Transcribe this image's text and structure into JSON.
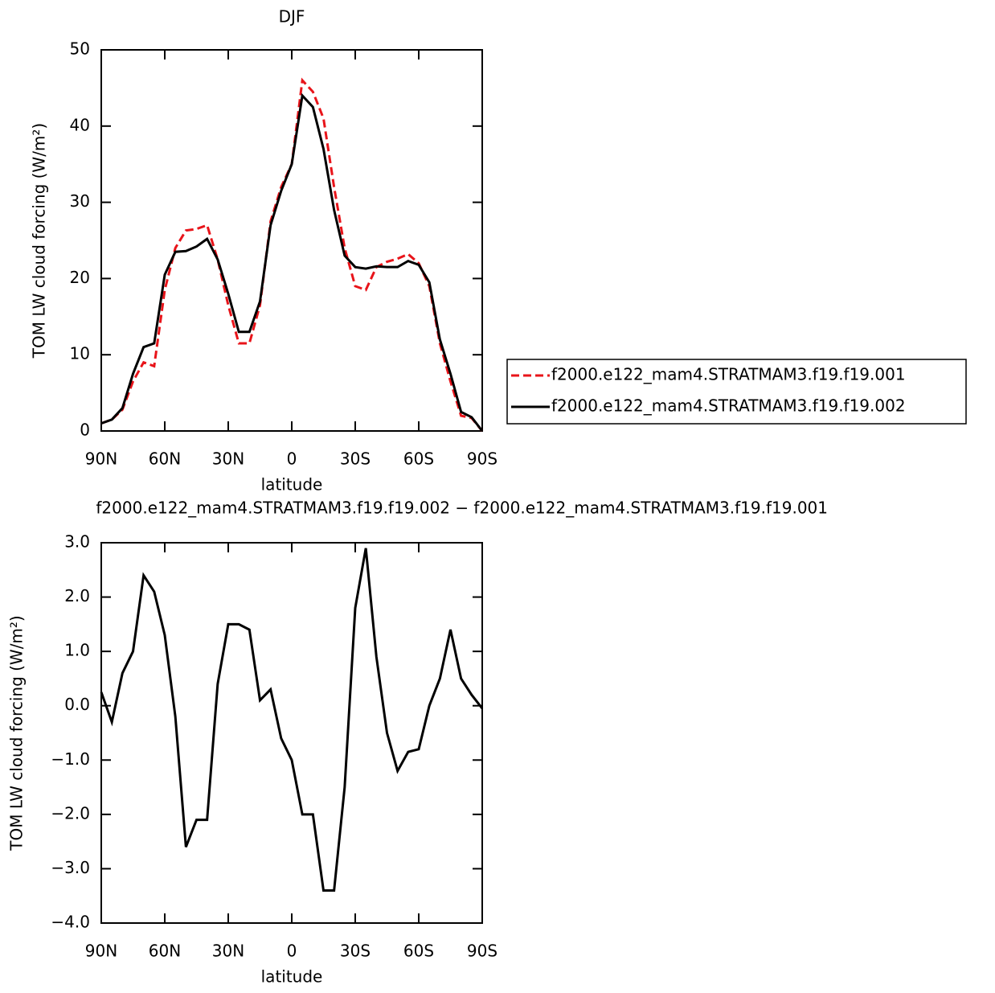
{
  "chart_data": [
    {
      "type": "line",
      "title": "DJF",
      "xlabel": "latitude",
      "ylabel": "TOM LW cloud forcing (W/m²)",
      "x": [
        90,
        85,
        80,
        75,
        70,
        65,
        60,
        55,
        50,
        45,
        40,
        35,
        30,
        25,
        20,
        15,
        10,
        5,
        0,
        -5,
        -10,
        -15,
        -20,
        -25,
        -30,
        -35,
        -40,
        -45,
        -50,
        -55,
        -60,
        -65,
        -70,
        -75,
        -80,
        -85,
        -90
      ],
      "xlim": [
        90,
        -90
      ],
      "xticks": [
        {
          "value": 90,
          "label": "90N"
        },
        {
          "value": 60,
          "label": "60N"
        },
        {
          "value": 30,
          "label": "30N"
        },
        0,
        {
          "value": -30,
          "label": "30S"
        },
        {
          "value": -60,
          "label": "60S"
        },
        {
          "value": -90,
          "label": "90S"
        }
      ],
      "ylim": [
        0,
        50
      ],
      "yticks": [
        0,
        10,
        20,
        30,
        40,
        50
      ],
      "series": [
        {
          "name": "f2000.e122_mam4.STRATMAM3.f19.f19.001",
          "color": "#e8141a",
          "dash": true,
          "values": [
            1.0,
            1.5,
            2.8,
            6.5,
            9.0,
            8.5,
            18.5,
            24.0,
            26.3,
            26.5,
            27.0,
            22.5,
            16.5,
            11.5,
            11.5,
            16.5,
            27.5,
            32.0,
            35.0,
            46.0,
            44.5,
            41.0,
            32.0,
            24.0,
            19.0,
            18.5,
            21.5,
            22.2,
            22.6,
            23.2,
            22.0,
            19.0,
            11.5,
            6.5,
            2.0,
            1.7,
            0.0
          ]
        },
        {
          "name": "f2000.e122_mam4.STRATMAM3.f19.f19.002",
          "color": "#000000",
          "dash": false,
          "values": [
            1.0,
            1.5,
            3.0,
            7.5,
            11.0,
            11.5,
            20.5,
            23.5,
            23.6,
            24.2,
            25.2,
            22.5,
            18.0,
            13.0,
            13.0,
            17.0,
            27.0,
            31.5,
            35.0,
            44.0,
            42.5,
            37.0,
            29.0,
            23.0,
            21.5,
            21.3,
            21.6,
            21.5,
            21.5,
            22.3,
            21.8,
            19.5,
            12.0,
            7.5,
            2.5,
            1.8,
            0.0
          ]
        }
      ]
    },
    {
      "type": "line",
      "title": "f2000.e122_mam4.STRATMAM3.f19.f19.002 − f2000.e122_mam4.STRATMAM3.f19.f19.001",
      "xlabel": "latitude",
      "ylabel": "TOM LW cloud forcing (W/m²)",
      "x": [
        90,
        85,
        80,
        75,
        70,
        65,
        60,
        55,
        50,
        45,
        40,
        35,
        30,
        25,
        20,
        15,
        10,
        5,
        0,
        -5,
        -10,
        -15,
        -20,
        -25,
        -30,
        -35,
        -40,
        -45,
        -50,
        -55,
        -60,
        -65,
        -70,
        -75,
        -80,
        -85,
        -90
      ],
      "xlim": [
        90,
        -90
      ],
      "xticks": [
        {
          "value": 90,
          "label": "90N"
        },
        {
          "value": 60,
          "label": "60N"
        },
        {
          "value": 30,
          "label": "30N"
        },
        0,
        {
          "value": -30,
          "label": "30S"
        },
        {
          "value": -60,
          "label": "60S"
        },
        {
          "value": -90,
          "label": "90S"
        }
      ],
      "ylim": [
        -4,
        3
      ],
      "yticks": [
        {
          "value": -4,
          "label": "−4.0"
        },
        {
          "value": -3,
          "label": "−3.0"
        },
        {
          "value": -2,
          "label": "−2.0"
        },
        {
          "value": -1,
          "label": "−1.0"
        },
        {
          "value": 0,
          "label": "0.0"
        },
        {
          "value": 1,
          "label": "1.0"
        },
        {
          "value": 2,
          "label": "2.0"
        },
        {
          "value": 3,
          "label": "3.0"
        }
      ],
      "series": [
        {
          "color": "#000000",
          "dash": false,
          "values": [
            0.25,
            -0.3,
            0.6,
            1.0,
            2.4,
            2.1,
            1.3,
            -0.2,
            -2.6,
            -2.1,
            -2.1,
            0.4,
            1.5,
            1.5,
            1.4,
            0.1,
            0.3,
            -0.6,
            -1.0,
            -2.0,
            -2.0,
            -3.4,
            -3.4,
            -1.5,
            1.8,
            2.9,
            0.9,
            -0.5,
            -1.2,
            -0.85,
            -0.8,
            0.0,
            0.5,
            1.4,
            0.5,
            0.2,
            -0.05
          ]
        }
      ]
    }
  ]
}
